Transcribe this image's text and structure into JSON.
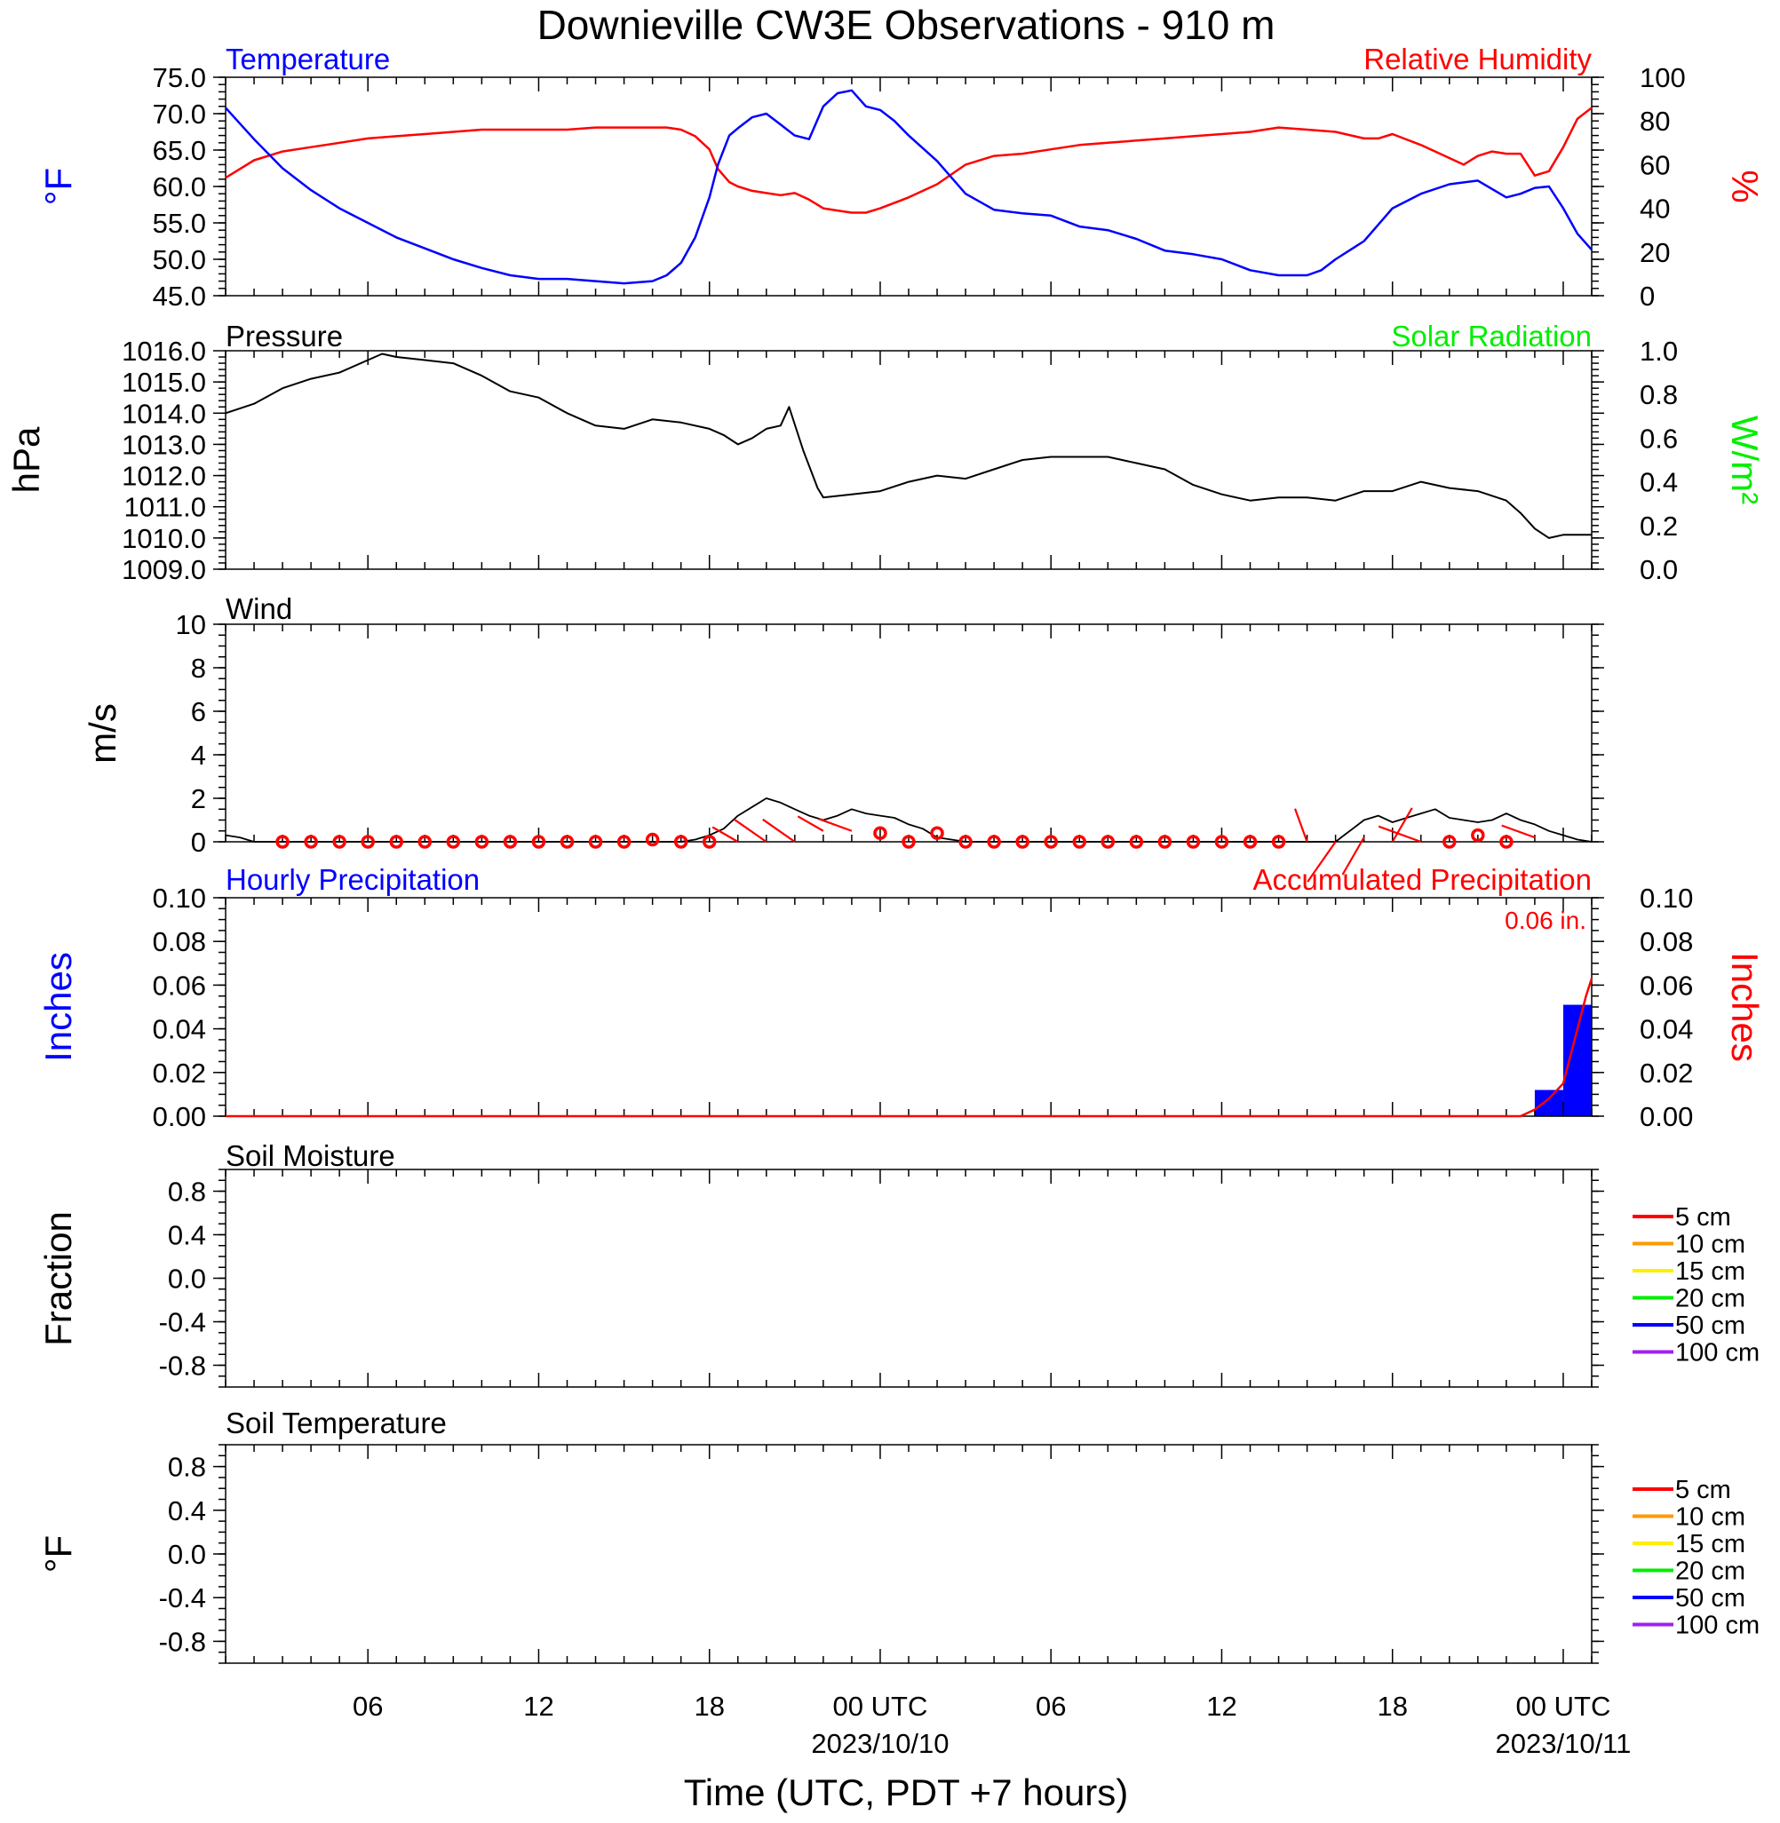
{
  "title": "Downieville CW3E Observations - 910 m",
  "xaxis": {
    "title": "Time (UTC, PDT +7 hours)",
    "range_hours": [
      0,
      48
    ],
    "ticks": [
      {
        "hour": 5,
        "label": "06",
        "sub": ""
      },
      {
        "hour": 11,
        "label": "12",
        "sub": ""
      },
      {
        "hour": 17,
        "label": "18",
        "sub": ""
      },
      {
        "hour": 23,
        "label": "00 UTC",
        "sub": "2023/10/10"
      },
      {
        "hour": 29,
        "label": "06",
        "sub": ""
      },
      {
        "hour": 35,
        "label": "12",
        "sub": ""
      },
      {
        "hour": 41,
        "label": "18",
        "sub": ""
      },
      {
        "hour": 47,
        "label": "00 UTC",
        "sub": "2023/10/11"
      }
    ]
  },
  "colors": {
    "temperature": "#0000ff",
    "humidity": "#ff0000",
    "pressure": "#000000",
    "solar": "#00ee00",
    "wind": "#000000",
    "barb": "#ff0000",
    "hourly_precip": "#0000ff",
    "accum_precip": "#ff0000"
  },
  "panels": {
    "temp_rh": {
      "left_title": "Temperature",
      "right_title": "Relative Humidity",
      "left_unit": "°F",
      "right_unit": "%",
      "left_ticks": [
        "75.0",
        "70.0",
        "65.0",
        "60.0",
        "55.0",
        "50.0",
        "45.0"
      ],
      "right_ticks": [
        "100",
        "80",
        "60",
        "40",
        "20",
        "0"
      ]
    },
    "pressure": {
      "left_title": "Pressure",
      "right_title": "Solar Radiation",
      "left_unit": "hPa",
      "right_unit": "W/m²",
      "left_ticks": [
        "1016.0",
        "1015.0",
        "1014.0",
        "1013.0",
        "1012.0",
        "1011.0",
        "1010.0",
        "1009.0"
      ],
      "right_ticks": [
        "1.0",
        "0.8",
        "0.6",
        "0.4",
        "0.2",
        "0.0"
      ]
    },
    "wind": {
      "left_title": "Wind",
      "left_unit": "m/s",
      "left_ticks": [
        "10",
        "8",
        "6",
        "4",
        "2",
        "0"
      ]
    },
    "precip": {
      "left_title": "Hourly Precipitation",
      "right_title": "Accumulated Precipitation",
      "left_unit": "Inches",
      "right_unit": "Inches",
      "total_label": "0.06 in.",
      "left_ticks": [
        "0.10",
        "0.08",
        "0.06",
        "0.04",
        "0.02",
        "0.00"
      ],
      "right_ticks": [
        "0.10",
        "0.08",
        "0.06",
        "0.04",
        "0.02",
        "0.00"
      ]
    },
    "soil_moisture": {
      "left_title": "Soil Moisture",
      "left_unit": "Fraction",
      "left_ticks": [
        "0.8",
        "0.4",
        "0.0",
        "-0.4",
        "-0.8"
      ]
    },
    "soil_temp": {
      "left_title": "Soil Temperature",
      "left_unit": "°F",
      "left_ticks": [
        "0.8",
        "0.4",
        "0.0",
        "-0.4",
        "-0.8"
      ]
    }
  },
  "legend": [
    {
      "label": "5 cm",
      "color": "#ff0000"
    },
    {
      "label": "10 cm",
      "color": "#ff9900"
    },
    {
      "label": "15 cm",
      "color": "#ffee00"
    },
    {
      "label": "20 cm",
      "color": "#00ee00"
    },
    {
      "label": "50 cm",
      "color": "#0000ff"
    },
    {
      "label": "100 cm",
      "color": "#a020f0"
    }
  ],
  "chart_data": [
    {
      "type": "line",
      "title": "Temperature / Relative Humidity",
      "x_unit": "hours since 2023-10-09 01 UTC",
      "ylim_left": [
        45,
        75
      ],
      "ylim_right": [
        0,
        100
      ],
      "series": [
        {
          "name": "Temperature",
          "axis": "left",
          "unit": "°F",
          "x": [
            0,
            1,
            2,
            3,
            4,
            5,
            6,
            7,
            8,
            9,
            10,
            11,
            12,
            13,
            14,
            15,
            15.5,
            16,
            16.5,
            17,
            17.3,
            17.7,
            18,
            18.5,
            19,
            19.5,
            20,
            20.5,
            21,
            21.5,
            22,
            22.5,
            23,
            23.5,
            24,
            25,
            26,
            27,
            28,
            29,
            30,
            31,
            32,
            33,
            34,
            35,
            36,
            37,
            38,
            38.5,
            39,
            40,
            41,
            42,
            43,
            44,
            45,
            45.5,
            46,
            46.5,
            47,
            47.5,
            48
          ],
          "y": [
            70.8,
            66.5,
            62.5,
            59.5,
            57.0,
            55.0,
            53.0,
            51.5,
            50.0,
            48.8,
            47.8,
            47.3,
            47.3,
            47.0,
            46.7,
            47.0,
            47.8,
            49.5,
            53.0,
            58.5,
            63.0,
            67.0,
            68.0,
            69.5,
            70.0,
            68.5,
            67.0,
            66.5,
            71.0,
            72.8,
            73.2,
            71.0,
            70.5,
            69.0,
            67.0,
            63.5,
            59.0,
            56.8,
            56.3,
            56.0,
            54.5,
            54.0,
            52.8,
            51.2,
            50.7,
            50.0,
            48.5,
            47.8,
            47.8,
            48.5,
            50.0,
            52.5,
            57.0,
            59.0,
            60.3,
            60.8,
            58.5,
            59.0,
            59.8,
            60.0,
            57.0,
            53.5,
            51.3
          ]
        },
        {
          "name": "Relative Humidity",
          "axis": "right",
          "unit": "%",
          "x": [
            0,
            1,
            2,
            3,
            4,
            5,
            6,
            7,
            8,
            9,
            10,
            11,
            12,
            13,
            14,
            15,
            15.5,
            16,
            16.5,
            17,
            17.3,
            17.7,
            18,
            18.5,
            19,
            19.5,
            20,
            20.5,
            21,
            21.5,
            22,
            22.5,
            23,
            24,
            25,
            26,
            27,
            28,
            29,
            30,
            31,
            32,
            33,
            34,
            35,
            36,
            37,
            38,
            39,
            40,
            40.5,
            41,
            42,
            43,
            43.5,
            44,
            44.5,
            45,
            45.5,
            46,
            46.5,
            47,
            47.5,
            48
          ],
          "y": [
            54,
            62,
            66,
            68,
            70,
            72,
            73,
            74,
            75,
            76,
            76,
            76,
            76,
            77,
            77,
            77,
            77,
            76,
            73,
            67,
            58,
            52,
            50,
            48,
            47,
            46,
            47,
            44,
            40,
            39,
            38,
            38,
            40,
            45,
            51,
            60,
            64,
            65,
            67,
            69,
            70,
            71,
            72,
            73,
            74,
            75,
            77,
            76,
            75,
            72,
            72,
            74,
            69,
            63,
            60,
            64,
            66,
            65,
            65,
            55,
            57,
            68,
            81,
            86
          ]
        }
      ]
    },
    {
      "type": "line",
      "title": "Pressure",
      "x_unit": "hours since 2023-10-09 01 UTC",
      "ylim_left": [
        1009,
        1016
      ],
      "ylim_right": [
        0,
        1
      ],
      "series": [
        {
          "name": "Pressure",
          "axis": "left",
          "unit": "hPa",
          "x": [
            0,
            1,
            2,
            3,
            4,
            5,
            5.5,
            6,
            7,
            8,
            9,
            10,
            11,
            12,
            13,
            14,
            15,
            16,
            17,
            17.5,
            18,
            18.5,
            19,
            19.5,
            19.8,
            20.3,
            20.8,
            21,
            22,
            23,
            24,
            25,
            26,
            27,
            28,
            29,
            30,
            31,
            32,
            33,
            34,
            35,
            36,
            37,
            38,
            39,
            40,
            41,
            42,
            43,
            44,
            45,
            45.5,
            46,
            46.5,
            47,
            48
          ],
          "y": [
            1014.0,
            1014.3,
            1014.8,
            1015.1,
            1015.3,
            1015.7,
            1015.9,
            1015.8,
            1015.7,
            1015.6,
            1015.2,
            1014.7,
            1014.5,
            1014.0,
            1013.6,
            1013.5,
            1013.8,
            1013.7,
            1013.5,
            1013.3,
            1013.0,
            1013.2,
            1013.5,
            1013.6,
            1014.2,
            1012.8,
            1011.6,
            1011.3,
            1011.4,
            1011.5,
            1011.8,
            1012.0,
            1011.9,
            1012.2,
            1012.5,
            1012.6,
            1012.6,
            1012.6,
            1012.4,
            1012.2,
            1011.7,
            1011.4,
            1011.2,
            1011.3,
            1011.3,
            1011.2,
            1011.5,
            1011.5,
            1011.8,
            1011.6,
            1011.5,
            1011.2,
            1010.8,
            1010.3,
            1010.0,
            1010.1,
            1010.1
          ]
        }
      ]
    },
    {
      "type": "line",
      "title": "Wind",
      "x_unit": "hours since 2023-10-09 01 UTC",
      "ylim": [
        0,
        10
      ],
      "series": [
        {
          "name": "Wind speed",
          "unit": "m/s",
          "x": [
            0,
            0.5,
            1,
            2,
            3,
            4,
            5,
            6,
            7,
            8,
            9,
            10,
            11,
            12,
            13,
            14,
            15,
            16,
            16.5,
            17,
            17.5,
            18,
            18.5,
            19,
            19.5,
            20,
            20.5,
            21,
            21.5,
            22,
            22.5,
            23,
            23.5,
            24,
            24.5,
            25,
            25.5,
            26,
            27,
            28,
            29,
            30,
            31,
            32,
            33,
            34,
            35,
            36,
            37,
            38,
            39,
            39.3,
            39.7,
            40,
            40.5,
            41,
            41.5,
            42,
            42.5,
            43,
            43.5,
            44,
            44.5,
            45,
            45.5,
            46,
            46.5,
            47,
            47.5,
            48
          ],
          "y": [
            0.3,
            0.2,
            0,
            0,
            0,
            0,
            0,
            0,
            0,
            0,
            0,
            0,
            0,
            0,
            0,
            0,
            0,
            0,
            0.1,
            0.3,
            0.6,
            1.2,
            1.6,
            2.0,
            1.8,
            1.5,
            1.2,
            1.0,
            1.2,
            1.5,
            1.3,
            1.2,
            1.1,
            0.8,
            0.6,
            0.2,
            0.1,
            0,
            0,
            0,
            0,
            0,
            0,
            0,
            0,
            0,
            0,
            0,
            0,
            0,
            0,
            0.3,
            0.7,
            1.0,
            1.2,
            0.9,
            1.1,
            1.3,
            1.5,
            1.1,
            1.0,
            0.9,
            1.0,
            1.3,
            1.0,
            0.8,
            0.5,
            0.3,
            0.1,
            0
          ],
          "barb_x": [
            2,
            3,
            4,
            5,
            6,
            7,
            8,
            9,
            10,
            11,
            12,
            13,
            14,
            15,
            16,
            17,
            18,
            19,
            20,
            21,
            22,
            23,
            24,
            25,
            26,
            27,
            28,
            29,
            30,
            31,
            32,
            33,
            34,
            35,
            36,
            37,
            38,
            39,
            40,
            41,
            42,
            43,
            44,
            45,
            46
          ],
          "barb_y": [
            0,
            0,
            0,
            0,
            0,
            0,
            0,
            0,
            0,
            0,
            0,
            0,
            0,
            0.1,
            0,
            0,
            0,
            0,
            0,
            0.5,
            0.5,
            0.4,
            0,
            0.4,
            0,
            0,
            0,
            0,
            0,
            0,
            0,
            0,
            0,
            0,
            0,
            0,
            0,
            0,
            0.2,
            0,
            0,
            0,
            0.3,
            0,
            0.2
          ],
          "barb_len": [
            0,
            0,
            0,
            0,
            0,
            0,
            0,
            0,
            0,
            0,
            0,
            0,
            0,
            0,
            0,
            0,
            1.5,
            2.0,
            2.0,
            1.5,
            1.8,
            0,
            0,
            0,
            0,
            0,
            0,
            0,
            0,
            0,
            0,
            0,
            0,
            0,
            0,
            0,
            1.8,
            2.5,
            2.2,
            2.0,
            2.3,
            0,
            0,
            0,
            1.8
          ],
          "barb_dir": [
            0,
            0,
            0,
            0,
            0,
            0,
            0,
            0,
            0,
            0,
            0,
            0,
            0,
            0,
            0,
            0,
            300,
            305,
            305,
            300,
            290,
            0,
            0,
            0,
            0,
            0,
            0,
            0,
            0,
            0,
            0,
            0,
            0,
            0,
            0,
            0,
            340,
            215,
            210,
            30,
            290,
            0,
            0,
            0,
            290
          ]
        }
      ]
    },
    {
      "type": "bar",
      "title": "Hourly Precipitation / Accumulated Precipitation",
      "x_unit": "hours since 2023-10-09 01 UTC",
      "ylim_left": [
        0,
        0.1
      ],
      "ylim_right": [
        0,
        0.1
      ],
      "series": [
        {
          "name": "Hourly Precipitation",
          "axis": "left",
          "unit": "Inches",
          "bars": [
            {
              "x0": 46,
              "x1": 47,
              "value": 0.012
            },
            {
              "x0": 47,
              "x1": 48,
              "value": 0.051
            }
          ]
        },
        {
          "name": "Accumulated Precipitation",
          "axis": "right",
          "unit": "Inches",
          "style": "line",
          "x": [
            0,
            45.5,
            46,
            46.5,
            47,
            47.3,
            47.6,
            47.8,
            48
          ],
          "y": [
            0,
            0,
            0.003,
            0.008,
            0.015,
            0.03,
            0.045,
            0.055,
            0.063
          ]
        }
      ]
    },
    {
      "type": "line",
      "title": "Soil Moisture",
      "ylim": [
        -1,
        1
      ],
      "series": []
    },
    {
      "type": "line",
      "title": "Soil Temperature",
      "ylim": [
        -1,
        1
      ],
      "series": []
    }
  ]
}
